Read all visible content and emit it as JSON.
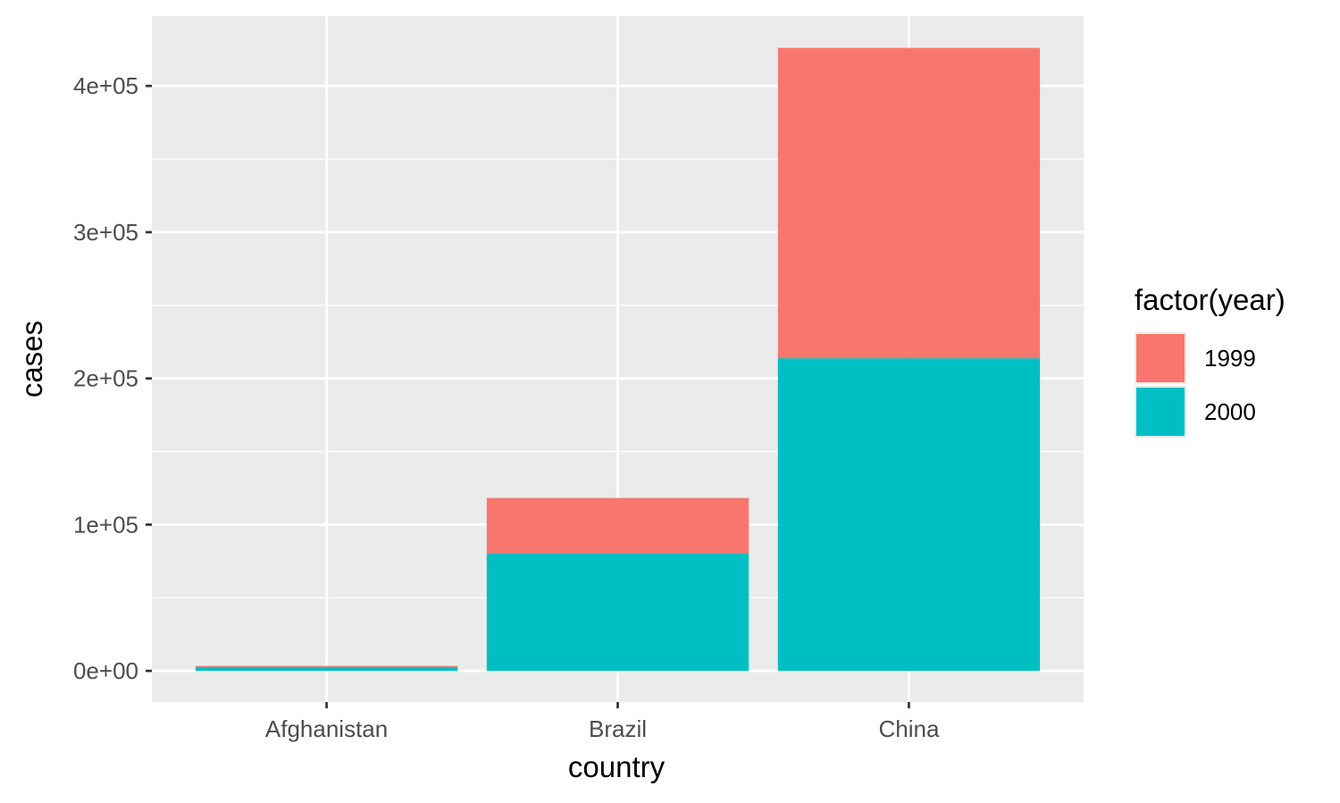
{
  "chart_data": {
    "type": "bar",
    "stacked": true,
    "categories": [
      "Afghanistan",
      "Brazil",
      "China"
    ],
    "series": [
      {
        "name": "1999",
        "color": "#F8766D",
        "values": [
          745,
          37737,
          212258
        ]
      },
      {
        "name": "2000",
        "color": "#00BFC4",
        "values": [
          2666,
          80488,
          213766
        ]
      }
    ],
    "stack_order_bottom_to_top": [
      "2000",
      "1999"
    ],
    "xlabel": "country",
    "ylabel": "cases",
    "ylim": [
      -21322,
      447773
    ],
    "yticks": [
      {
        "value": 0,
        "label": "0e+00"
      },
      {
        "value": 100000,
        "label": "1e+05"
      },
      {
        "value": 200000,
        "label": "2e+05"
      },
      {
        "value": 300000,
        "label": "3e+05"
      },
      {
        "value": 400000,
        "label": "4e+05"
      }
    ],
    "y_minor_ticks": [
      50000,
      150000,
      250000,
      350000
    ],
    "grid": true,
    "legend": {
      "title": "factor(year)",
      "placement": "right",
      "entries": [
        "1999",
        "2000"
      ]
    },
    "colors": {
      "panel_background": "#EBEBEB",
      "grid_line": "#FFFFFF",
      "tick_mark": "#333333"
    }
  }
}
